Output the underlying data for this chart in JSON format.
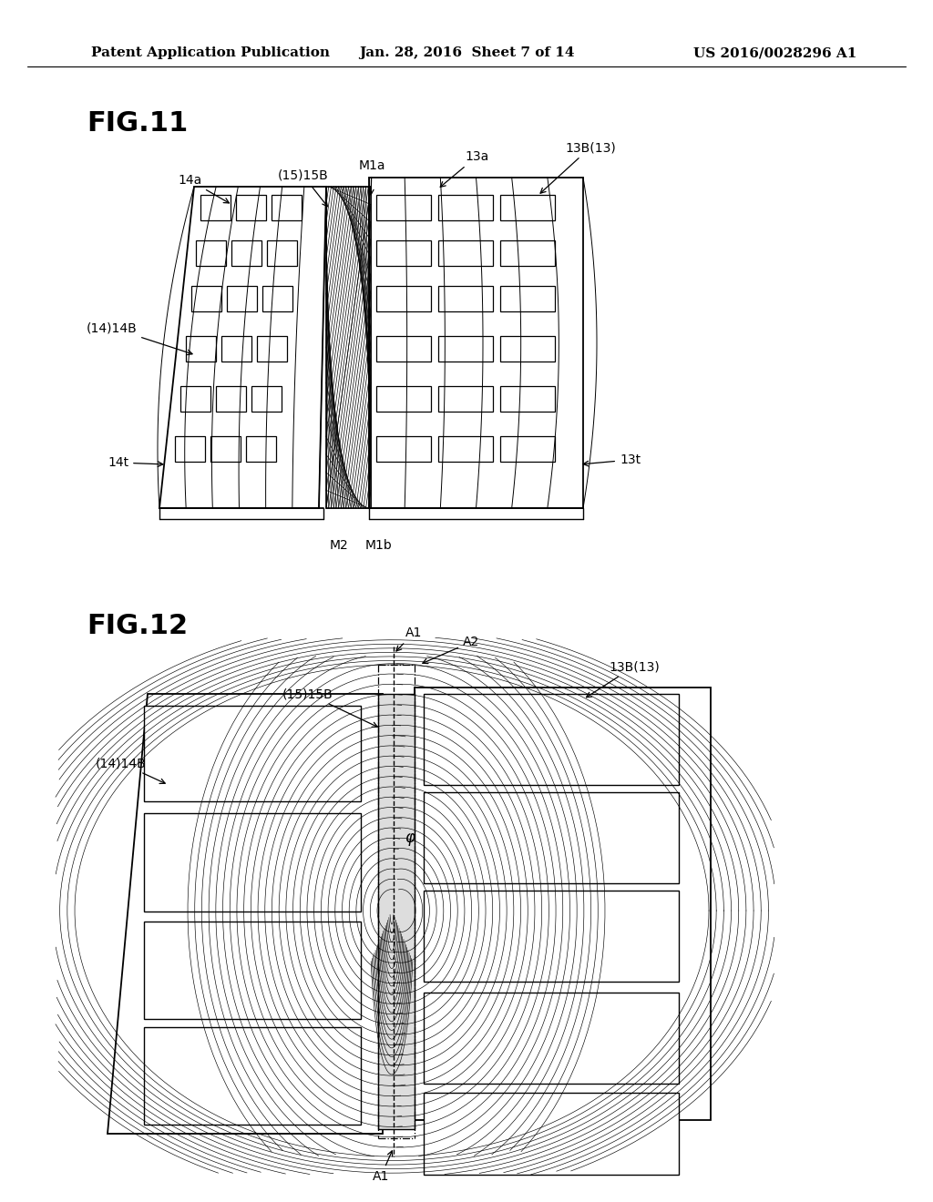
{
  "background_color": "#ffffff",
  "header_left": "Patent Application Publication",
  "header_center": "Jan. 28, 2016  Sheet 7 of 14",
  "header_right": "US 2016/0028296 A1",
  "fig11_label": "FIG.11",
  "fig12_label": "FIG.12",
  "text_color": "#000000",
  "header_fontsize": 11,
  "fig_label_fontsize": 22,
  "annotation_fontsize": 10
}
